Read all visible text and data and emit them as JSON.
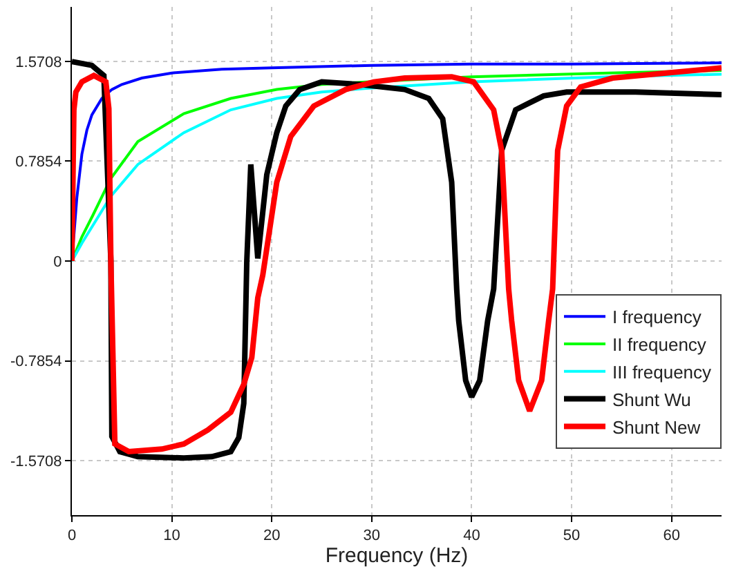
{
  "chart_data": {
    "type": "line",
    "xlabel": "Frequency (Hz)",
    "xlim": [
      0,
      65
    ],
    "xticks": [
      0,
      10,
      20,
      30,
      40,
      50,
      60
    ],
    "ylim": [
      -2,
      2
    ],
    "yticks": [
      {
        "value": -1.5708,
        "label": "-1.5708"
      },
      {
        "value": -0.7854,
        "label": "-0.7854"
      },
      {
        "value": 0,
        "label": "0"
      },
      {
        "value": 0.7854,
        "label": "0.7854"
      },
      {
        "value": 1.5708,
        "label": "1.5708"
      }
    ],
    "grid": true,
    "legend": "bottom right",
    "line_style": "solid",
    "series": [
      {
        "name": "I frequency",
        "color": "#0000ff",
        "x": [
          0,
          0.5,
          1,
          1.5,
          2,
          3,
          4,
          5,
          7,
          10,
          15,
          20,
          30,
          40,
          50,
          65
        ],
        "values": [
          0,
          0.5,
          0.84,
          1.03,
          1.15,
          1.28,
          1.35,
          1.39,
          1.44,
          1.48,
          1.51,
          1.52,
          1.54,
          1.55,
          1.55,
          1.56
        ]
      },
      {
        "name": "II frequency",
        "color": "#00ff00",
        "x": [
          0,
          1,
          2.1,
          3.9,
          6.6,
          11.2,
          15.9,
          20.5,
          25,
          29.7,
          40,
          53.7,
          65
        ],
        "values": [
          0,
          0.19,
          0.36,
          0.65,
          0.94,
          1.16,
          1.28,
          1.35,
          1.39,
          1.41,
          1.45,
          1.48,
          1.5
        ]
      },
      {
        "name": "III frequency",
        "color": "#00ffff",
        "x": [
          0,
          1,
          2.1,
          3.9,
          6.6,
          11.2,
          15.9,
          20.5,
          25,
          29.7,
          40,
          53.7,
          65
        ],
        "values": [
          0,
          0.14,
          0.28,
          0.51,
          0.76,
          1.01,
          1.19,
          1.28,
          1.33,
          1.36,
          1.41,
          1.45,
          1.47
        ]
      },
      {
        "name": "Shunt Wu",
        "color": "#000000",
        "x": [
          0,
          2,
          3.2,
          3.9,
          4.0,
          4.8,
          6.6,
          11.2,
          14,
          15.9,
          16.7,
          17.2,
          17.5,
          17.9,
          18.6,
          19.5,
          20.5,
          21.4,
          22.8,
          25,
          28.8,
          33.3,
          35.7,
          37.1,
          38,
          38.5,
          38.7,
          39.4,
          40,
          40.8,
          41.6,
          42.2,
          43,
          44.4,
          47.2,
          49.5,
          56.4,
          65
        ],
        "values": [
          1.57,
          1.54,
          1.46,
          0,
          -1.38,
          -1.5,
          -1.54,
          -1.55,
          -1.54,
          -1.5,
          -1.39,
          -1.12,
          0,
          0.76,
          0.02,
          0.68,
          1.01,
          1.22,
          1.35,
          1.41,
          1.39,
          1.35,
          1.28,
          1.12,
          0.62,
          -0.22,
          -0.47,
          -0.94,
          -1.07,
          -0.94,
          -0.47,
          -0.22,
          0.87,
          1.19,
          1.3,
          1.33,
          1.33,
          1.31
        ]
      },
      {
        "name": "Shunt New",
        "color": "#ff0000",
        "x": [
          0,
          0.2,
          0.4,
          1,
          2.2,
          3.4,
          3.7,
          3.9,
          4.3,
          5.7,
          9,
          11.2,
          13.6,
          15.9,
          17.2,
          18,
          18.6,
          19.1,
          20.5,
          21.9,
          24.2,
          27.4,
          30.2,
          33.3,
          38,
          40.2,
          42.2,
          43,
          43.7,
          44,
          44.7,
          45.8,
          47,
          47.7,
          48.1,
          48.6,
          49.5,
          50.9,
          54.1,
          65
        ],
        "values": [
          0,
          1.19,
          1.33,
          1.41,
          1.46,
          1.41,
          1.2,
          0,
          -1.44,
          -1.5,
          -1.48,
          -1.44,
          -1.33,
          -1.19,
          -0.97,
          -0.76,
          -0.29,
          -0.11,
          0.62,
          0.98,
          1.22,
          1.35,
          1.41,
          1.44,
          1.45,
          1.41,
          1.19,
          0.87,
          -0.22,
          -0.47,
          -0.94,
          -1.18,
          -0.94,
          -0.47,
          -0.22,
          0.87,
          1.22,
          1.37,
          1.44,
          1.52
        ]
      }
    ]
  }
}
